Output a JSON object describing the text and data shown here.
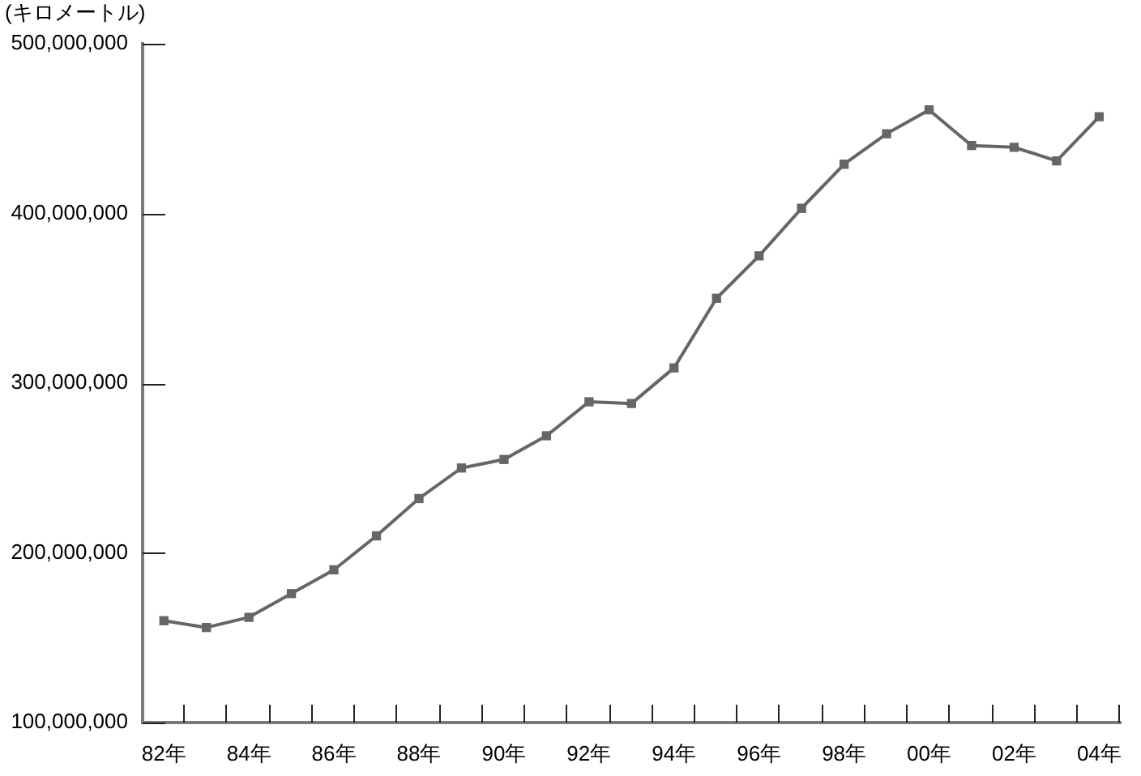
{
  "chart_data": {
    "type": "line",
    "ylabel": "(キロメートル)",
    "categories": [
      "82年",
      null,
      "84年",
      null,
      "86年",
      null,
      "88年",
      null,
      "90年",
      null,
      "92年",
      null,
      "94年",
      null,
      "96年",
      null,
      "98年",
      null,
      "00年",
      null,
      "02年",
      null,
      "04年"
    ],
    "values": [
      160000000,
      156000000,
      162000000,
      176000000,
      190000000,
      210000000,
      232000000,
      250000000,
      255000000,
      269000000,
      289000000,
      288000000,
      309000000,
      350000000,
      375000000,
      403000000,
      429000000,
      447000000,
      461000000,
      440000000,
      439000000,
      431000000,
      457000000
    ],
    "color": "#666666",
    "ylim": [
      100000000,
      500000000
    ],
    "yticks": [
      {
        "value": 100000000,
        "label": "100,000,000"
      },
      {
        "value": 200000000,
        "label": "200,000,000"
      },
      {
        "value": 300000000,
        "label": "300,000,000"
      },
      {
        "value": 400000000,
        "label": "400,000,000"
      },
      {
        "value": 500000000,
        "label": "500,000,000"
      }
    ],
    "grid": false,
    "legend": false,
    "marker": "square",
    "line_style": "solid"
  }
}
